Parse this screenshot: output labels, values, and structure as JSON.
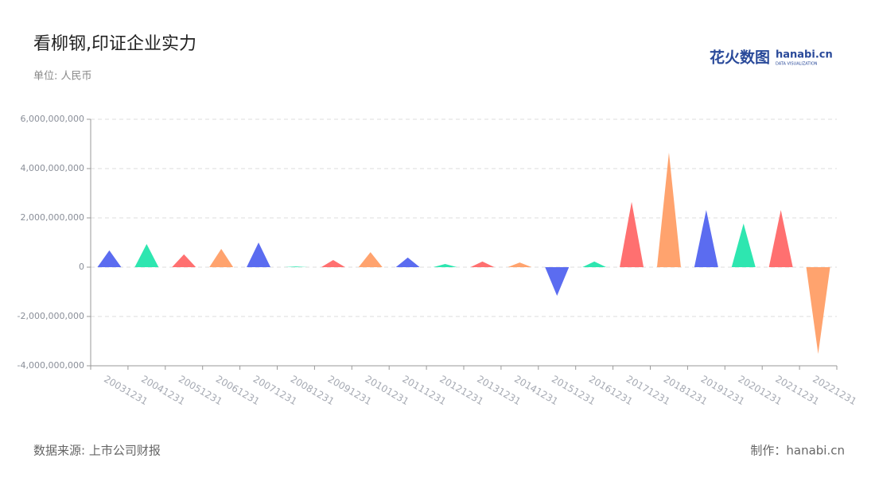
{
  "logo": {
    "text": "花火数图",
    "brand": "hanabi.cn",
    "tagline": "DATA VISUALIZATION"
  },
  "chart_data": {
    "type": "bar",
    "title": "看柳钢,印证企业实力",
    "subtitle": "单位: 人民币",
    "source": "数据来源: 上市公司财报",
    "credit": "制作：hanabi.cn",
    "categories": [
      "20031231",
      "20041231",
      "20051231",
      "20061231",
      "20071231",
      "20081231",
      "20091231",
      "20101231",
      "20111231",
      "20121231",
      "20131231",
      "20141231",
      "20151231",
      "20161231",
      "20171231",
      "20181231",
      "20191231",
      "20201231",
      "20211231",
      "20221231"
    ],
    "values": [
      680000000,
      940000000,
      520000000,
      740000000,
      1000000000,
      30000000,
      290000000,
      610000000,
      390000000,
      130000000,
      230000000,
      190000000,
      -1160000000,
      230000000,
      2650000000,
      4650000000,
      2320000000,
      1770000000,
      2320000000,
      -3520000000
    ],
    "colors": [
      "#5b6cf0",
      "#2ee6b0",
      "#ff7070",
      "#ffa36e"
    ],
    "ylim": [
      -4000000000,
      6000000000
    ],
    "yticks": [
      {
        "value": -4000000000,
        "label": "-4,000,000,000"
      },
      {
        "value": -2000000000,
        "label": "-2,000,000,000"
      },
      0,
      {
        "value": 2000000000,
        "label": "2,000,000,000"
      },
      {
        "value": 4000000000,
        "label": "4,000,000,000"
      },
      {
        "value": 6000000000,
        "label": "6,000,000,000"
      }
    ],
    "grid": true
  }
}
